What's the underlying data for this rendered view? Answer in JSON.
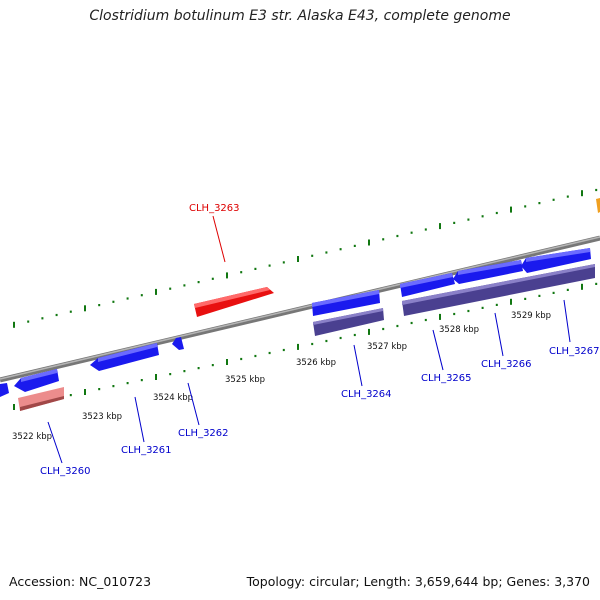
{
  "header": {
    "title": "Clostridium botulinum E3 str. Alaska E43, complete genome"
  },
  "footer": {
    "accession": "Accession: NC_010723",
    "summary": "Topology: circular; Length: 3,659,644 bp; Genes: 3,370"
  },
  "scale": {
    "tick_labels": [
      "3522 kbp",
      "3523 kbp",
      "3524 kbp",
      "3525 kbp",
      "3526 kbp",
      "3527 kbp",
      "3528 kbp",
      "3529 kbp"
    ]
  },
  "genes": [
    {
      "name": "CLH_3260",
      "color": "#0000cc"
    },
    {
      "name": "CLH_3261",
      "color": "#0000cc"
    },
    {
      "name": "CLH_3262",
      "color": "#0000cc"
    },
    {
      "name": "CLH_3263",
      "color": "#dd0000"
    },
    {
      "name": "CLH_3264",
      "color": "#0000cc"
    },
    {
      "name": "CLH_3265",
      "color": "#0000cc"
    },
    {
      "name": "CLH_3266",
      "color": "#0000cc"
    },
    {
      "name": "CLH_3267",
      "color": "#0000cc"
    }
  ],
  "colors": {
    "backbone": "#888888",
    "tick_mark": "#117711",
    "forward_cds": "#1a1aee",
    "reverse_cds": "#ee1111",
    "forward_rna": "#4a4090",
    "reverse_rna": "#e88888",
    "other_feature": "#f0a020"
  }
}
